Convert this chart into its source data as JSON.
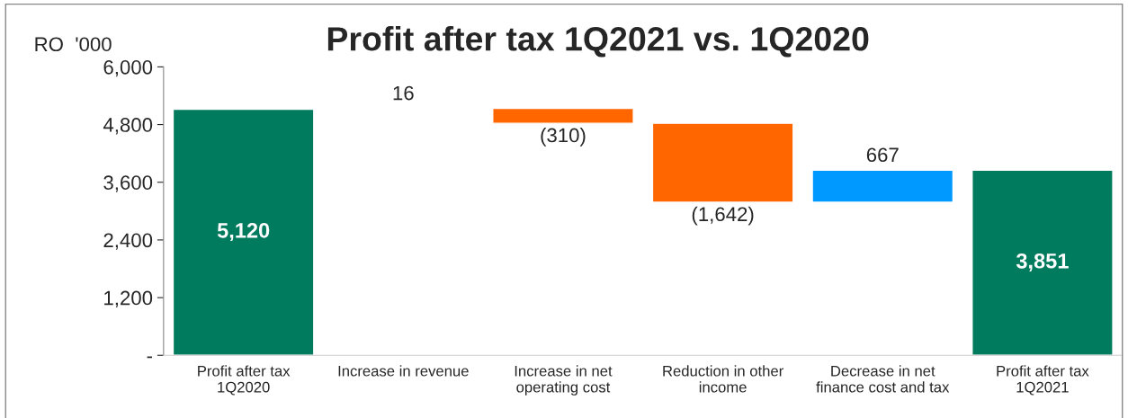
{
  "chart_data": {
    "type": "bar",
    "title": "Profit after tax 1Q2021 vs. 1Q2020",
    "ylabel": "RO  '000",
    "categories": [
      "Profit after tax\n1Q2020",
      "Increase in revenue",
      "Increase in net\noperating cost",
      "Reduction in other\nincome",
      "Decrease in net\nfinance cost and tax",
      "Profit after tax\n1Q2021"
    ],
    "values": [
      5120,
      16,
      -310,
      -1642,
      667,
      3851
    ],
    "base": [
      0,
      5120,
      5136,
      4826,
      3184,
      0
    ],
    "colors": [
      "#007b5e",
      "#595959",
      "#ff6600",
      "#ff6600",
      "#0099ff",
      "#007b5e"
    ],
    "value_labels": [
      "5,120",
      "16",
      "(310)",
      "(1,642)",
      "667",
      "3,851"
    ],
    "ylim": [
      0,
      6000
    ],
    "yticks": [
      {
        "value": 0,
        "label": "-"
      },
      {
        "value": 1200,
        "label": "1,200"
      },
      {
        "value": 2400,
        "label": "2,400"
      },
      {
        "value": 3600,
        "label": "3,600"
      },
      {
        "value": 4800,
        "label": "4,800"
      },
      {
        "value": 6000,
        "label": "6,000"
      }
    ],
    "grid": false,
    "legend": false
  }
}
